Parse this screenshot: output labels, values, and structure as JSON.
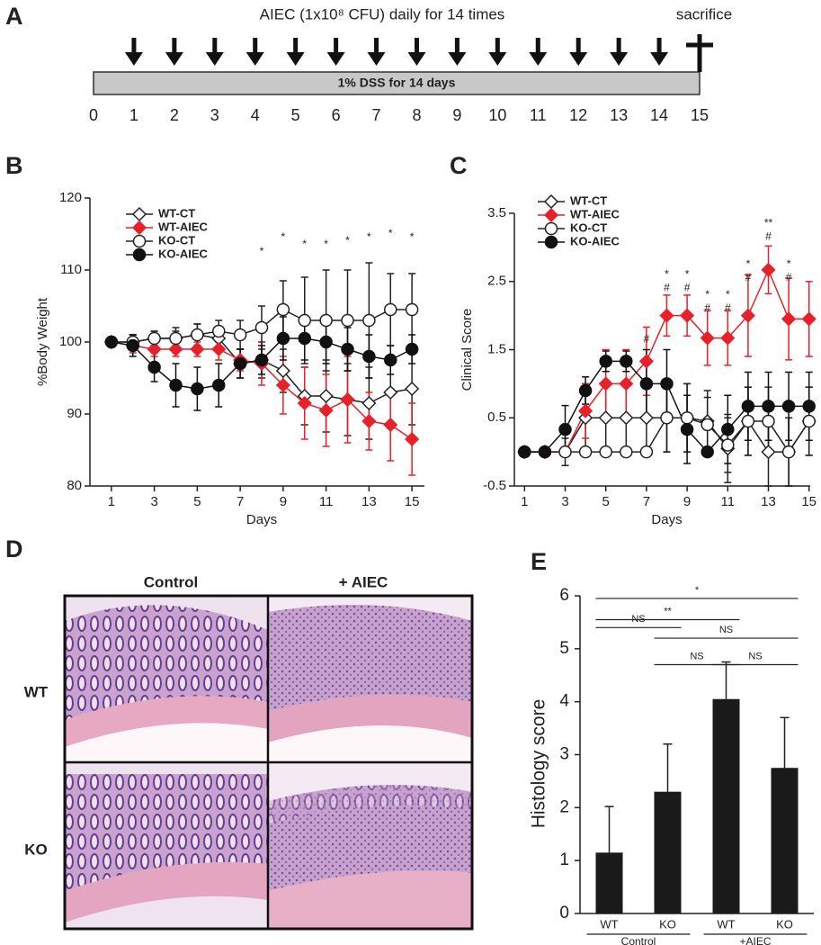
{
  "panel_labels": [
    "A",
    "B",
    "C",
    "D",
    "E"
  ],
  "timeline": {
    "treatment": "AIEC (1x10⁸ CFU)  daily for 14 times",
    "end_label": "sacrifice",
    "bar_label": "1% DSS for 14 days",
    "ticks": [
      0,
      1,
      2,
      3,
      4,
      5,
      6,
      7,
      8,
      9,
      10,
      11,
      12,
      13,
      14,
      15
    ]
  },
  "histology": {
    "columns": [
      "Control",
      "+ AIEC"
    ],
    "rows": [
      "WT",
      "KO"
    ]
  },
  "chart_data": [
    {
      "type": "line",
      "x_label": "Days",
      "y_label": "%Body Weight",
      "x": [
        1,
        2,
        3,
        4,
        5,
        6,
        7,
        8,
        9,
        10,
        11,
        12,
        13,
        14,
        15
      ],
      "xlim": [
        0,
        16
      ],
      "xticks": [
        1,
        3,
        5,
        7,
        9,
        11,
        13,
        15
      ],
      "ylim": [
        80,
        120
      ],
      "yticks": [
        80,
        90,
        100,
        110,
        120
      ],
      "legend": "upper left",
      "series": [
        {
          "name": "WT-CT",
          "color": "#222222",
          "marker": "diamond-open",
          "values": [
            100,
            100,
            100.5,
            100.5,
            101,
            100.5,
            97,
            97.5,
            96,
            92.5,
            92.5,
            92,
            91.5,
            93,
            93.5
          ],
          "errors": [
            0.5,
            1,
            1,
            1.5,
            1.5,
            1.5,
            2,
            2.5,
            3,
            4,
            5,
            5,
            5,
            5,
            5
          ]
        },
        {
          "name": "WT-AIEC",
          "color": "#e8202a",
          "marker": "diamond",
          "values": [
            100,
            99.5,
            99,
            99,
            99,
            99,
            97.5,
            97,
            94,
            91.5,
            90.5,
            92,
            89,
            88.5,
            86.5
          ],
          "errors": [
            0.5,
            1,
            1,
            1,
            1,
            1.5,
            1.5,
            3,
            4,
            5,
            5,
            6,
            4,
            5,
            5
          ]
        },
        {
          "name": "KO-CT",
          "color": "#222222",
          "marker": "circle-open",
          "values": [
            100,
            100,
            100.5,
            100.5,
            101,
            101.5,
            101,
            102,
            104.5,
            103,
            103,
            103,
            103,
            104.5,
            104.5
          ],
          "errors": [
            0.5,
            1,
            1,
            1,
            1.5,
            1.5,
            2,
            3,
            4,
            6,
            7,
            7,
            8,
            5,
            5
          ]
        },
        {
          "name": "KO-AIEC",
          "color": "#111111",
          "marker": "circle",
          "values": [
            100,
            99.5,
            96.5,
            94,
            93.5,
            94,
            97,
            97.5,
            100.5,
            100.5,
            100,
            99,
            98,
            97.5,
            99
          ],
          "errors": [
            0.5,
            1.5,
            2,
            3,
            3,
            3,
            2,
            2,
            3,
            3,
            3,
            3,
            3,
            2,
            2
          ]
        }
      ],
      "annotations": [
        {
          "x": 8,
          "y": 112.5,
          "text": "*"
        },
        {
          "x": 9,
          "y": 114.5,
          "text": "*"
        },
        {
          "x": 10,
          "y": 113.5,
          "text": "*"
        },
        {
          "x": 11,
          "y": 113.5,
          "text": "*"
        },
        {
          "x": 12,
          "y": 114,
          "text": "*"
        },
        {
          "x": 13,
          "y": 114.5,
          "text": "*"
        },
        {
          "x": 14,
          "y": 115,
          "text": "*"
        },
        {
          "x": 15,
          "y": 114.5,
          "text": "*"
        }
      ]
    },
    {
      "type": "line",
      "x_label": "Days",
      "y_label": "Clinical Score",
      "x": [
        1,
        2,
        3,
        4,
        5,
        6,
        7,
        8,
        9,
        10,
        11,
        12,
        13,
        14,
        15
      ],
      "xlim": [
        0.5,
        15.5
      ],
      "xticks": [
        1,
        3,
        5,
        7,
        9,
        11,
        13,
        15
      ],
      "ylim": [
        -0.5,
        3.5
      ],
      "yticks": [
        -0.5,
        0.5,
        1.5,
        2.5,
        3.5
      ],
      "legend": "upper left",
      "series": [
        {
          "name": "WT-CT",
          "color": "#222222",
          "marker": "diamond-open",
          "values": [
            0,
            0,
            0,
            0.5,
            0.5,
            0.5,
            0.5,
            0.5,
            0.5,
            0.45,
            0.05,
            0.45,
            0,
            0,
            0.45
          ],
          "errors": [
            0,
            0,
            0,
            0.5,
            0.5,
            0.5,
            0.5,
            0.5,
            0.5,
            0.45,
            0.5,
            0.5,
            0.5,
            0.5,
            0.5
          ]
        },
        {
          "name": "WT-AIEC",
          "color": "#e8202a",
          "marker": "diamond",
          "values": [
            0,
            0,
            0,
            0.6,
            1,
            1,
            1.33,
            2,
            2,
            1.67,
            1.67,
            2,
            2.67,
            1.95,
            1.95
          ],
          "errors": [
            0,
            0,
            0,
            0.4,
            0.5,
            0.5,
            0.5,
            0.3,
            0.3,
            0.4,
            0.4,
            0.6,
            0.35,
            0.6,
            0.55
          ]
        },
        {
          "name": "KO-CT",
          "color": "#222222",
          "marker": "circle-open",
          "values": [
            0,
            0,
            0,
            0,
            0,
            0,
            0,
            0.5,
            0.5,
            0.4,
            0.1,
            0.45,
            0.45,
            0,
            0.45
          ],
          "errors": [
            0,
            0,
            0.2,
            0,
            0,
            0,
            0,
            0.5,
            0.5,
            0.4,
            0.4,
            0.5,
            0.5,
            0.5,
            0.5
          ]
        },
        {
          "name": "KO-AIEC",
          "color": "#111111",
          "marker": "circle",
          "values": [
            0,
            0,
            0.33,
            0.9,
            1.33,
            1.33,
            1,
            1,
            0.33,
            0,
            0.33,
            0.67,
            0.67,
            0.67,
            0.67
          ],
          "errors": [
            0,
            0,
            0.35,
            0.2,
            0.15,
            0.15,
            0.5,
            0.5,
            0.5,
            0,
            0.5,
            0.5,
            0.5,
            0.5,
            0.5
          ]
        }
      ],
      "annotations": [
        {
          "x": 7,
          "y": 1.65,
          "text": "#"
        },
        {
          "x": 8,
          "y": 2.6,
          "text": "*"
        },
        {
          "x": 8,
          "y": 2.4,
          "text": "#"
        },
        {
          "x": 9,
          "y": 2.6,
          "text": "*"
        },
        {
          "x": 9,
          "y": 2.4,
          "text": "#"
        },
        {
          "x": 10,
          "y": 2.3,
          "text": "*"
        },
        {
          "x": 10,
          "y": 2.1,
          "text": "#"
        },
        {
          "x": 11,
          "y": 2.3,
          "text": "*"
        },
        {
          "x": 11,
          "y": 2.1,
          "text": "#"
        },
        {
          "x": 12,
          "y": 2.75,
          "text": "*"
        },
        {
          "x": 12,
          "y": 2.55,
          "text": "#"
        },
        {
          "x": 13,
          "y": 3.35,
          "text": "**"
        },
        {
          "x": 13,
          "y": 3.15,
          "text": "#"
        },
        {
          "x": 14,
          "y": 2.75,
          "text": "*"
        },
        {
          "x": 14,
          "y": 2.55,
          "text": "#"
        }
      ]
    },
    {
      "type": "bar",
      "y_label": "Histology score",
      "categories": [
        "WT",
        "KO",
        "WT",
        "KO"
      ],
      "values": [
        1.15,
        2.3,
        4.05,
        2.75
      ],
      "errors": [
        0.87,
        0.9,
        0.7,
        0.95
      ],
      "color": "#1a1a1a",
      "ylim": [
        0,
        6
      ],
      "yticks": [
        0,
        1,
        2,
        3,
        4,
        5,
        6
      ],
      "groups": [
        {
          "label": "Control",
          "categories": [
            0,
            1
          ]
        },
        {
          "label": "+AIEC",
          "categories": [
            2,
            3
          ]
        }
      ],
      "brackets": [
        {
          "from": 0,
          "to": 3,
          "y": 5.95,
          "label": "*"
        },
        {
          "from": 0,
          "to": 2,
          "y": 5.55,
          "label": "**"
        },
        {
          "from": 0,
          "to": 1,
          "y": 5.4,
          "label": "NS"
        },
        {
          "from": 1,
          "to": 3,
          "y": 5.2,
          "label": "NS"
        },
        {
          "from": 1,
          "to": 2,
          "y": 4.7,
          "label": "NS"
        },
        {
          "from": 2,
          "to": 3,
          "y": 4.7,
          "label": "NS"
        }
      ]
    }
  ]
}
